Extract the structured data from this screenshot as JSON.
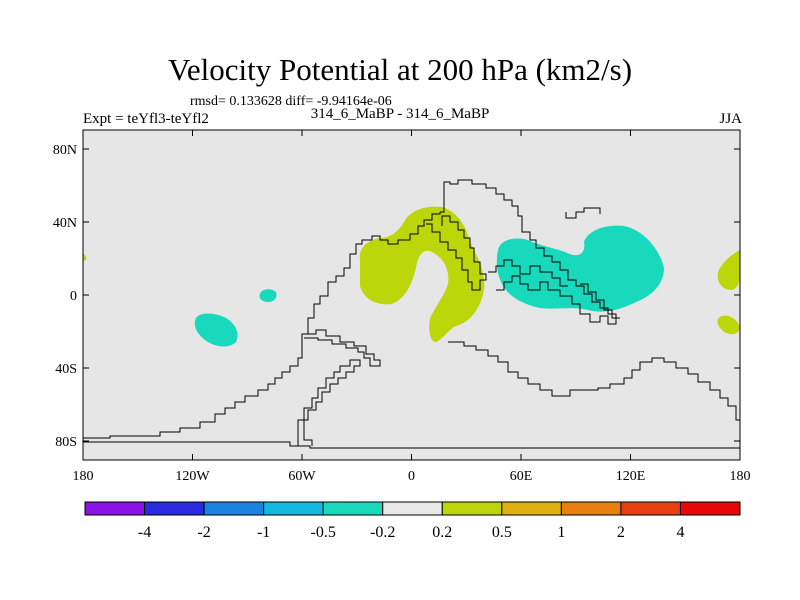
{
  "title": "Velocity Potential at 200 hPa (km2/s)",
  "stats": "rmsd= 0.133628 diff= -9.94164e-06",
  "expt": "Expt = teYfl3-teYfl2",
  "cases": "314_6_MaBP - 314_6_MaBP",
  "season": "JJA",
  "colors": {
    "background": "#e6e6e6",
    "positive_low": "#bcd60a",
    "negative_low": "#19d9bd",
    "coastline": "#000000"
  },
  "lat_labels": [
    "80N",
    "40N",
    "0",
    "40S",
    "80S"
  ],
  "lon_labels": [
    "180",
    "120W",
    "60W",
    "0",
    "60E",
    "120E",
    "180"
  ],
  "colorbar": {
    "labels": [
      "-4",
      "-2",
      "-1",
      "-0.5",
      "-0.2",
      "0.2",
      "0.5",
      "1",
      "2",
      "4"
    ],
    "colors": [
      "#8a12e6",
      "#2a2ae0",
      "#1a82e0",
      "#14b8e0",
      "#19d9bd",
      "#e8e8e8",
      "#bcd60a",
      "#e0b010",
      "#e88010",
      "#e84010",
      "#e80808"
    ]
  }
}
